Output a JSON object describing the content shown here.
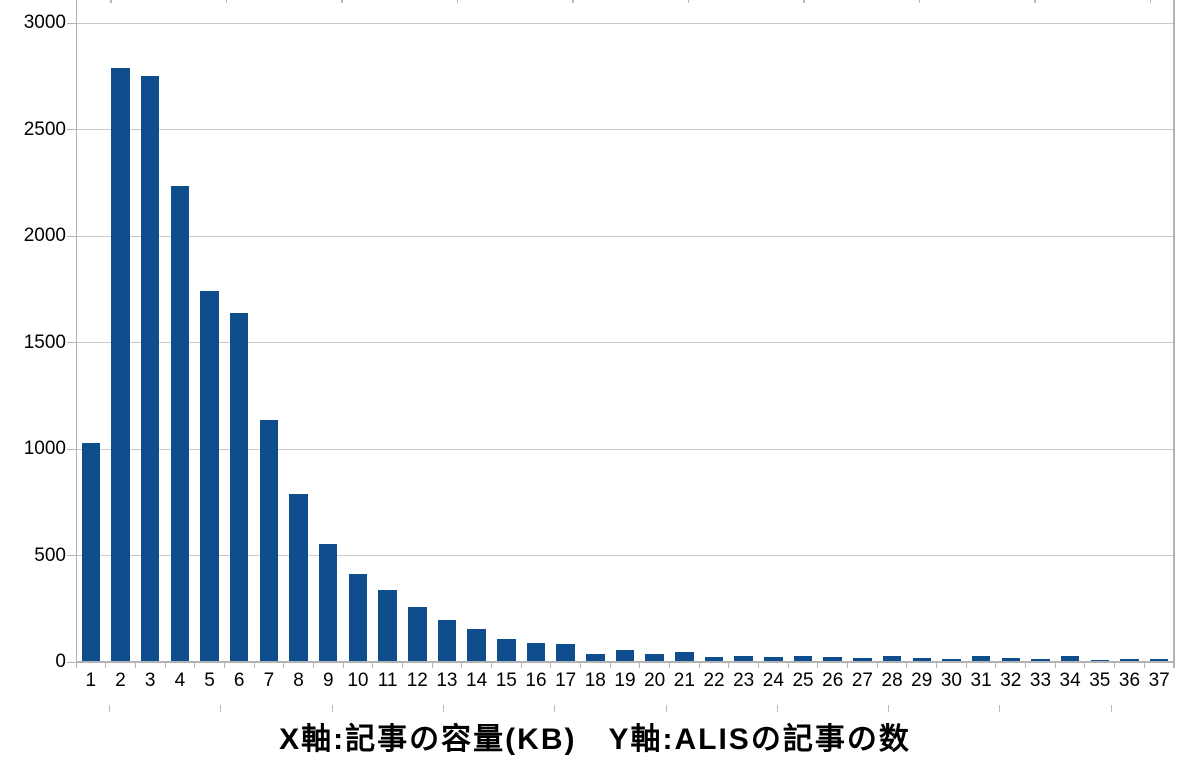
{
  "chart_data": {
    "type": "bar",
    "title": "X軸:記事の容量(KB)　Y軸:ALISの記事の数",
    "xlabel": "記事の容量(KB)",
    "ylabel": "ALISの記事の数",
    "categories": [
      "1",
      "2",
      "3",
      "4",
      "5",
      "6",
      "7",
      "8",
      "9",
      "10",
      "11",
      "12",
      "13",
      "14",
      "15",
      "16",
      "17",
      "18",
      "19",
      "20",
      "21",
      "22",
      "23",
      "24",
      "25",
      "26",
      "27",
      "28",
      "29",
      "30",
      "31",
      "32",
      "33",
      "34",
      "35",
      "36",
      "37"
    ],
    "values": [
      1030,
      2790,
      2750,
      2235,
      1742,
      1640,
      1135,
      791,
      556,
      411,
      336,
      256,
      197,
      156,
      110,
      91,
      85,
      39,
      55,
      39,
      46,
      22,
      26,
      23,
      30,
      25,
      21,
      26,
      19,
      13,
      27,
      19,
      16,
      26,
      9,
      14,
      12
    ],
    "ylim": [
      0,
      3000
    ],
    "ytick_interval": 500,
    "yticks": [
      "0",
      "500",
      "1000",
      "1500",
      "2000",
      "2500",
      "3000"
    ],
    "grid": true,
    "legend": "none"
  },
  "colors": {
    "bar": "#0F4E8C",
    "gridline": "#C9C9C9",
    "axis": "#B3B3B3",
    "sheet_mark": "#B9B9B9",
    "text": "#000000",
    "background": "#FFFFFF"
  }
}
